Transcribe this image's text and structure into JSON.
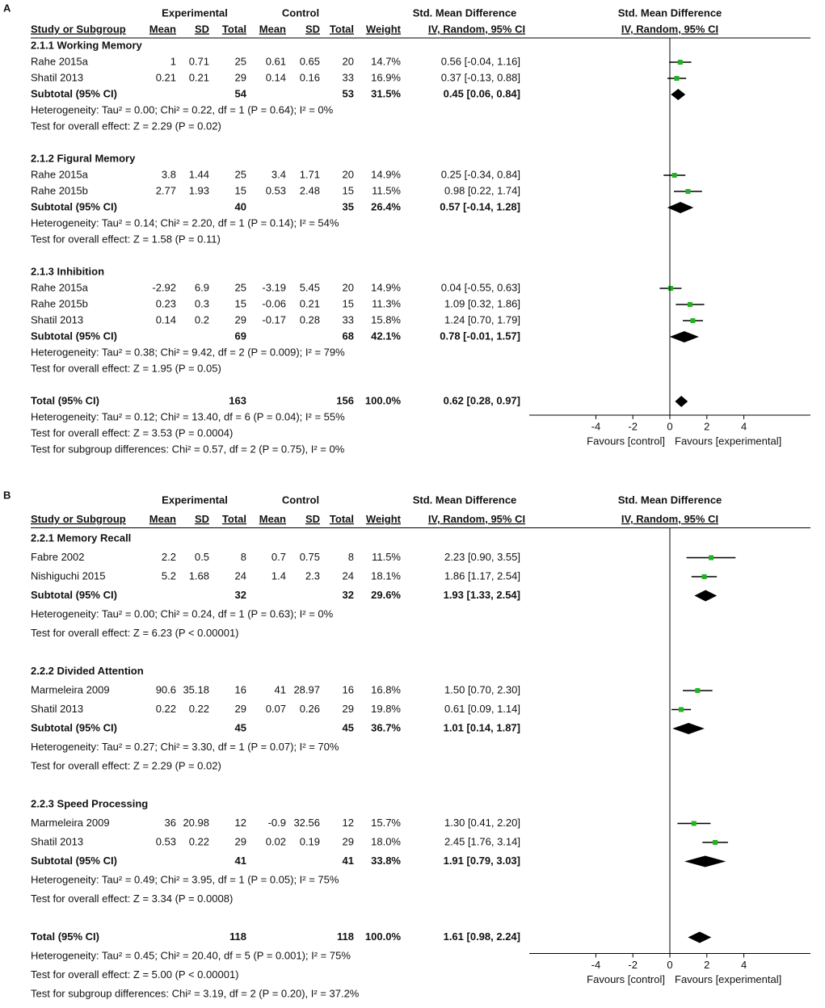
{
  "chart_data": [
    {
      "type": "forest",
      "panel": "A",
      "header": {
        "group_exp": "Experimental",
        "group_ctrl": "Control",
        "effect": "Std. Mean Difference",
        "columns": [
          "Study or Subgroup",
          "Mean",
          "SD",
          "Total",
          "Mean",
          "SD",
          "Total",
          "Weight",
          "IV, Random, 95% CI"
        ],
        "plot_title": "Std. Mean Difference",
        "plot_method": "IV, Random, 95% CI"
      },
      "groups": [
        {
          "title": "2.1.1 Working Memory",
          "studies": [
            {
              "name": "Rahe 2015a",
              "exp": {
                "mean": 1,
                "sd": 0.71,
                "total": 25
              },
              "ctrl": {
                "mean": 0.61,
                "sd": 0.65,
                "total": 20
              },
              "weight": "14.7%",
              "smd": 0.56,
              "ci": [
                -0.04,
                1.16
              ],
              "smd_label": "0.56 [-0.04, 1.16]"
            },
            {
              "name": "Shatil 2013",
              "exp": {
                "mean": 0.21,
                "sd": 0.21,
                "total": 29
              },
              "ctrl": {
                "mean": 0.14,
                "sd": 0.16,
                "total": 33
              },
              "weight": "16.9%",
              "smd": 0.37,
              "ci": [
                -0.13,
                0.88
              ],
              "smd_label": "0.37 [-0.13, 0.88]"
            }
          ],
          "subtotal": {
            "name": "Subtotal (95% CI)",
            "exp_total": 54,
            "ctrl_total": 53,
            "weight": "31.5%",
            "smd": 0.45,
            "ci": [
              0.06,
              0.84
            ],
            "smd_label": "0.45 [0.06, 0.84]"
          },
          "notes": [
            "Heterogeneity: Tau² = 0.00; Chi² = 0.22, df = 1 (P = 0.64); I² = 0%",
            "Test for overall effect: Z = 2.29 (P = 0.02)"
          ]
        },
        {
          "title": "2.1.2 Figural Memory",
          "studies": [
            {
              "name": "Rahe 2015a",
              "exp": {
                "mean": 3.8,
                "sd": 1.44,
                "total": 25
              },
              "ctrl": {
                "mean": 3.4,
                "sd": 1.71,
                "total": 20
              },
              "weight": "14.9%",
              "smd": 0.25,
              "ci": [
                -0.34,
                0.84
              ],
              "smd_label": "0.25 [-0.34, 0.84]"
            },
            {
              "name": "Rahe 2015b",
              "exp": {
                "mean": 2.77,
                "sd": 1.93,
                "total": 15
              },
              "ctrl": {
                "mean": 0.53,
                "sd": 2.48,
                "total": 15
              },
              "weight": "11.5%",
              "smd": 0.98,
              "ci": [
                0.22,
                1.74
              ],
              "smd_label": "0.98 [0.22, 1.74]"
            }
          ],
          "subtotal": {
            "name": "Subtotal (95% CI)",
            "exp_total": 40,
            "ctrl_total": 35,
            "weight": "26.4%",
            "smd": 0.57,
            "ci": [
              -0.14,
              1.28
            ],
            "smd_label": "0.57 [-0.14, 1.28]"
          },
          "notes": [
            "Heterogeneity: Tau² = 0.14; Chi² = 2.20, df = 1 (P = 0.14); I² = 54%",
            "Test for overall effect: Z = 1.58 (P = 0.11)"
          ]
        },
        {
          "title": "2.1.3 Inhibition",
          "studies": [
            {
              "name": "Rahe 2015a",
              "exp": {
                "mean": -2.92,
                "sd": 6.9,
                "total": 25
              },
              "ctrl": {
                "mean": -3.19,
                "sd": 5.45,
                "total": 20
              },
              "weight": "14.9%",
              "smd": 0.04,
              "ci": [
                -0.55,
                0.63
              ],
              "smd_label": "0.04 [-0.55, 0.63]"
            },
            {
              "name": "Rahe 2015b",
              "exp": {
                "mean": 0.23,
                "sd": 0.3,
                "total": 15
              },
              "ctrl": {
                "mean": -0.06,
                "sd": 0.21,
                "total": 15
              },
              "weight": "11.3%",
              "smd": 1.09,
              "ci": [
                0.32,
                1.86
              ],
              "smd_label": "1.09 [0.32, 1.86]"
            },
            {
              "name": "Shatil 2013",
              "exp": {
                "mean": 0.14,
                "sd": 0.2,
                "total": 29
              },
              "ctrl": {
                "mean": -0.17,
                "sd": 0.28,
                "total": 33
              },
              "weight": "15.8%",
              "smd": 1.24,
              "ci": [
                0.7,
                1.79
              ],
              "smd_label": "1.24 [0.70, 1.79]"
            }
          ],
          "subtotal": {
            "name": "Subtotal (95% CI)",
            "exp_total": 69,
            "ctrl_total": 68,
            "weight": "42.1%",
            "smd": 0.78,
            "ci": [
              -0.01,
              1.57
            ],
            "smd_label": "0.78 [-0.01, 1.57]"
          },
          "notes": [
            "Heterogeneity: Tau² = 0.38; Chi² = 9.42, df = 2 (P = 0.009); I² = 79%",
            "Test for overall effect: Z = 1.95 (P = 0.05)"
          ]
        }
      ],
      "total": {
        "name": "Total (95% CI)",
        "exp_total": 163,
        "ctrl_total": 156,
        "weight": "100.0%",
        "smd": 0.62,
        "ci": [
          0.28,
          0.97
        ],
        "smd_label": "0.62 [0.28, 0.97]",
        "notes": [
          "Heterogeneity: Tau² = 0.12; Chi² = 13.40, df = 6 (P = 0.04); I² = 55%",
          "Test for overall effect: Z = 3.53 (P = 0.0004)",
          "Test for subgroup differences: Chi² = 0.57, df = 2 (P = 0.75), I² = 0%"
        ]
      },
      "xlim": [
        -7.6,
        7.6
      ],
      "xticks": [
        -4,
        -2,
        0,
        2,
        4
      ],
      "xlabels": [
        "Favours [control]",
        "Favours [experimental]"
      ],
      "square_color": "#22b322",
      "diamond_color": "#000000"
    },
    {
      "type": "forest",
      "panel": "B",
      "header": {
        "group_exp": "Experimental",
        "group_ctrl": "Control",
        "effect": "Std. Mean Difference",
        "columns": [
          "Study or Subgroup",
          "Mean",
          "SD",
          "Total",
          "Mean",
          "SD",
          "Total",
          "Weight",
          "IV, Random, 95% CI"
        ],
        "plot_title": "Std. Mean Difference",
        "plot_method": "IV, Random, 95% CI"
      },
      "groups": [
        {
          "title": "2.2.1 Memory Recall",
          "studies": [
            {
              "name": "Fabre 2002",
              "exp": {
                "mean": 2.2,
                "sd": 0.5,
                "total": 8
              },
              "ctrl": {
                "mean": 0.7,
                "sd": 0.75,
                "total": 8
              },
              "weight": "11.5%",
              "smd": 2.23,
              "ci": [
                0.9,
                3.55
              ],
              "smd_label": "2.23 [0.90, 3.55]"
            },
            {
              "name": "Nishiguchi 2015",
              "exp": {
                "mean": 5.2,
                "sd": 1.68,
                "total": 24
              },
              "ctrl": {
                "mean": 1.4,
                "sd": 2.3,
                "total": 24
              },
              "weight": "18.1%",
              "smd": 1.86,
              "ci": [
                1.17,
                2.54
              ],
              "smd_label": "1.86 [1.17, 2.54]"
            }
          ],
          "subtotal": {
            "name": "Subtotal (95% CI)",
            "exp_total": 32,
            "ctrl_total": 32,
            "weight": "29.6%",
            "smd": 1.93,
            "ci": [
              1.33,
              2.54
            ],
            "smd_label": "1.93 [1.33, 2.54]"
          },
          "notes": [
            "Heterogeneity: Tau² = 0.00; Chi² = 0.24, df = 1 (P = 0.63); I² = 0%",
            "Test for overall effect: Z = 6.23 (P < 0.00001)"
          ]
        },
        {
          "title": "2.2.2 Divided Attention",
          "studies": [
            {
              "name": "Marmeleira 2009",
              "exp": {
                "mean": 90.6,
                "sd": 35.18,
                "total": 16
              },
              "ctrl": {
                "mean": 41,
                "sd": 28.97,
                "total": 16
              },
              "weight": "16.8%",
              "smd": 1.5,
              "ci": [
                0.7,
                2.3
              ],
              "smd_label": "1.50 [0.70, 2.30]"
            },
            {
              "name": "Shatil 2013",
              "exp": {
                "mean": 0.22,
                "sd": 0.22,
                "total": 29
              },
              "ctrl": {
                "mean": 0.07,
                "sd": 0.26,
                "total": 29
              },
              "weight": "19.8%",
              "smd": 0.61,
              "ci": [
                0.09,
                1.14
              ],
              "smd_label": "0.61 [0.09, 1.14]"
            }
          ],
          "subtotal": {
            "name": "Subtotal (95% CI)",
            "exp_total": 45,
            "ctrl_total": 45,
            "weight": "36.7%",
            "smd": 1.01,
            "ci": [
              0.14,
              1.87
            ],
            "smd_label": "1.01 [0.14, 1.87]"
          },
          "notes": [
            "Heterogeneity: Tau² = 0.27; Chi² = 3.30, df = 1 (P = 0.07); I² = 70%",
            "Test for overall effect: Z = 2.29 (P = 0.02)"
          ]
        },
        {
          "title": "2.2.3 Speed Processing",
          "studies": [
            {
              "name": "Marmeleira 2009",
              "exp": {
                "mean": 36,
                "sd": 20.98,
                "total": 12
              },
              "ctrl": {
                "mean": -0.9,
                "sd": 32.56,
                "total": 12
              },
              "weight": "15.7%",
              "smd": 1.3,
              "ci": [
                0.41,
                2.2
              ],
              "smd_label": "1.30 [0.41, 2.20]"
            },
            {
              "name": "Shatil 2013",
              "exp": {
                "mean": 0.53,
                "sd": 0.22,
                "total": 29
              },
              "ctrl": {
                "mean": 0.02,
                "sd": 0.19,
                "total": 29
              },
              "weight": "18.0%",
              "smd": 2.45,
              "ci": [
                1.76,
                3.14
              ],
              "smd_label": "2.45 [1.76, 3.14]"
            }
          ],
          "subtotal": {
            "name": "Subtotal (95% CI)",
            "exp_total": 41,
            "ctrl_total": 41,
            "weight": "33.8%",
            "smd": 1.91,
            "ci": [
              0.79,
              3.03
            ],
            "smd_label": "1.91 [0.79, 3.03]"
          },
          "notes": [
            "Heterogeneity: Tau² = 0.49; Chi² = 3.95, df = 1 (P = 0.05); I² = 75%",
            "Test for overall effect: Z = 3.34 (P = 0.0008)"
          ]
        }
      ],
      "total": {
        "name": "Total (95% CI)",
        "exp_total": 118,
        "ctrl_total": 118,
        "weight": "100.0%",
        "smd": 1.61,
        "ci": [
          0.98,
          2.24
        ],
        "smd_label": "1.61 [0.98, 2.24]",
        "notes": [
          "Heterogeneity: Tau² = 0.45; Chi² = 20.40, df = 5 (P = 0.001); I² = 75%",
          "Test for overall effect: Z = 5.00 (P < 0.00001)",
          "Test for subgroup differences: Chi² = 3.19, df = 2 (P = 0.20), I² = 37.2%"
        ]
      },
      "xlim": [
        -7.6,
        7.6
      ],
      "xticks": [
        -4,
        -2,
        0,
        2,
        4
      ],
      "xlabels": [
        "Favours [control]",
        "Favours [experimental]"
      ],
      "square_color": "#22b322",
      "diamond_color": "#000000"
    }
  ]
}
